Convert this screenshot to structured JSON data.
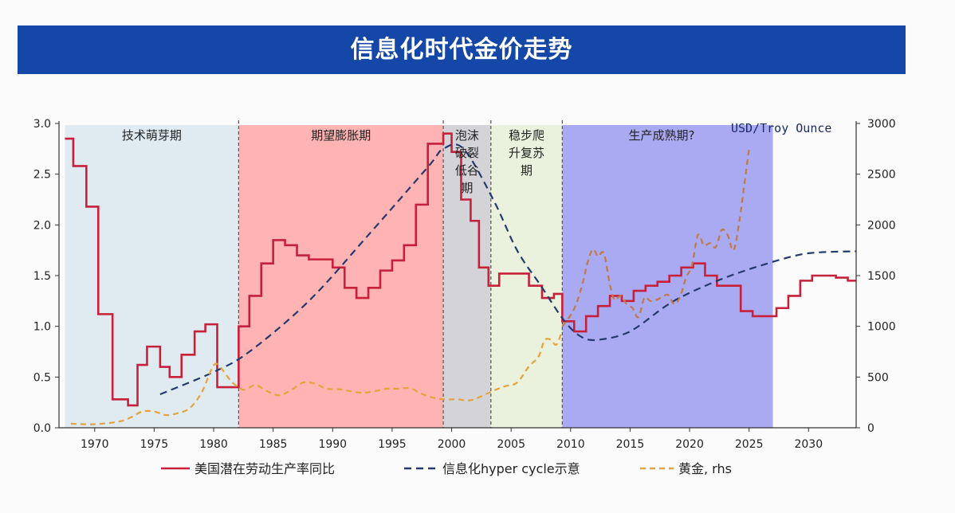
{
  "header": {
    "title": "信息化时代金价走势"
  },
  "chart_data": {
    "type": "line",
    "unit_label": "USD/Troy Ounce",
    "x_ticks": [
      1970,
      1975,
      1980,
      1985,
      1990,
      1995,
      2000,
      2005,
      2010,
      2015,
      2020,
      2025,
      2030
    ],
    "xlim": [
      1967,
      2034
    ],
    "y_left": {
      "ticks": [
        "0.0",
        "0.5",
        "1.0",
        "1.5",
        "2.0",
        "2.5",
        "3.0"
      ],
      "lim": [
        0,
        3
      ]
    },
    "y_right": {
      "ticks": [
        "0",
        "500",
        "1000",
        "1500",
        "2000",
        "2500",
        "3000"
      ],
      "lim": [
        0,
        3000
      ]
    },
    "grid": false,
    "legend_position": "bottom",
    "regions": [
      {
        "label": "技术萌芽期",
        "x0": 1967.5,
        "x1": 1982.1,
        "color": "#dfeaf1"
      },
      {
        "label": "期望膨胀期",
        "x0": 1982.1,
        "x1": 1999.3,
        "color": "#ffb3b3"
      },
      {
        "label": "泡沫破裂低谷期",
        "x0": 1999.3,
        "x1": 2003.3,
        "color": "#d3d3d8"
      },
      {
        "label": "稳步爬升复苏期",
        "x0": 2003.3,
        "x1": 2009.3,
        "color": "#eaf1dc"
      },
      {
        "label": "生产成熟期?",
        "x0": 2009.3,
        "x1": 2027.0,
        "color": "#aaaaf2"
      }
    ],
    "dividers": [
      1982.1,
      1999.3,
      2003.3,
      2009.3
    ],
    "series": [
      {
        "name": "美国潜在劳动生产率同比",
        "axis": "left",
        "style": "step",
        "color": "#c8203a",
        "x": [
          1967.5,
          1968.2,
          1969.3,
          1970.3,
          1971.5,
          1972.8,
          1973.6,
          1974.4,
          1975.5,
          1976.3,
          1977.3,
          1978.4,
          1979.3,
          1980.3,
          1982.1,
          1983.0,
          1984.0,
          1985.0,
          1986.0,
          1987.0,
          1988.0,
          1989.0,
          1990.0,
          1991.0,
          1992.0,
          1993.0,
          1994.0,
          1995.0,
          1996.0,
          1997.0,
          1998.0,
          1999.3,
          2000.0,
          2000.8,
          2001.6,
          2002.3,
          2003.1,
          2004.0,
          2005.0,
          2006.5,
          2007.6,
          2008.6,
          2009.3,
          2010.3,
          2011.3,
          2012.3,
          2013.3,
          2014.3,
          2015.3,
          2016.3,
          2017.3,
          2018.3,
          2019.3,
          2020.3,
          2021.3,
          2022.3,
          2023.3,
          2024.3,
          2025.3,
          2026.3,
          2027.3,
          2028.3,
          2029.3,
          2030.3,
          2031.3,
          2032.3,
          2033.3
        ],
        "values": [
          2.85,
          2.58,
          2.18,
          1.12,
          0.28,
          0.22,
          0.62,
          0.8,
          0.6,
          0.5,
          0.72,
          0.95,
          1.02,
          0.4,
          1.0,
          1.3,
          1.62,
          1.85,
          1.8,
          1.7,
          1.66,
          1.66,
          1.58,
          1.38,
          1.28,
          1.38,
          1.55,
          1.65,
          1.8,
          2.2,
          2.8,
          2.9,
          2.72,
          2.25,
          2.04,
          1.58,
          1.4,
          1.52,
          1.52,
          1.4,
          1.28,
          1.32,
          1.05,
          0.95,
          1.1,
          1.2,
          1.3,
          1.25,
          1.35,
          1.4,
          1.44,
          1.5,
          1.58,
          1.62,
          1.5,
          1.4,
          1.4,
          1.15,
          1.1,
          1.1,
          1.18,
          1.3,
          1.45,
          1.5,
          1.5,
          1.48,
          1.45
        ]
      },
      {
        "name": "信息化hyper cycle示意",
        "axis": "left",
        "style": "dashed",
        "color": "#243a6e",
        "x": [
          1975.5,
          1980,
          1983,
          1988,
          1993,
          1998,
          1999.3,
          2001,
          2003.5,
          2005.5,
          2007.5,
          2009.5,
          2011,
          2012.5,
          2015,
          2018,
          2020,
          2023,
          2026,
          2029,
          2031,
          2034
        ],
        "values": [
          0.33,
          0.55,
          0.75,
          1.25,
          1.9,
          2.57,
          2.75,
          2.75,
          2.25,
          1.75,
          1.4,
          1.05,
          0.89,
          0.87,
          0.95,
          1.2,
          1.33,
          1.48,
          1.6,
          1.7,
          1.73,
          1.74
        ]
      },
      {
        "name": "黄金, rhs",
        "axis": "right",
        "style": "dashed",
        "color": "#e8a23a",
        "x": [
          1968,
          1970,
          1972,
          1973,
          1974,
          1975,
          1976,
          1977,
          1978,
          1979,
          1980,
          1980.6,
          1981.5,
          1982.5,
          1983.5,
          1984.5,
          1985.5,
          1986.5,
          1987.5,
          1988.5,
          1989.5,
          1990.5,
          1991.5,
          1992.5,
          1993.5,
          1994.5,
          1995.5,
          1996.5,
          1997.5,
          1998.5,
          1999.5,
          2000.5,
          2001.5,
          2002.5,
          2003.5,
          2004.5,
          2005.5,
          2006.5,
          2007.3,
          2007.8,
          2008.3,
          2008.8,
          2009.3
        ],
        "values": [
          40,
          35,
          60,
          100,
          160,
          160,
          125,
          145,
          195,
          350,
          615,
          590,
          455,
          375,
          420,
          360,
          320,
          370,
          445,
          435,
          385,
          380,
          360,
          345,
          360,
          385,
          385,
          390,
          335,
          295,
          280,
          280,
          270,
          310,
          365,
          410,
          445,
          605,
          700,
          860,
          870,
          820,
          960
        ]
      },
      {
        "name": "黄金, rhs",
        "axis": "right",
        "style": "dashed",
        "color": "#c07a45",
        "x": [
          2009.3,
          2010.0,
          2010.5,
          2011.0,
          2011.5,
          2011.9,
          2012.3,
          2012.8,
          2013.3,
          2013.7,
          2014.2,
          2014.7,
          2015.2,
          2015.7,
          2016.2,
          2016.7,
          2017.2,
          2017.7,
          2018.2,
          2018.7,
          2019.2,
          2019.7,
          2020.2,
          2020.7,
          2021.2,
          2021.7,
          2022.2,
          2022.7,
          2023.2,
          2023.7,
          2024.2,
          2024.6,
          2025.0
        ],
        "values": [
          1000,
          1110,
          1230,
          1420,
          1660,
          1760,
          1690,
          1720,
          1410,
          1260,
          1300,
          1220,
          1180,
          1090,
          1280,
          1250,
          1260,
          1290,
          1310,
          1220,
          1290,
          1480,
          1600,
          1900,
          1800,
          1820,
          1780,
          1950,
          1900,
          1750,
          2050,
          2400,
          2750
        ]
      }
    ]
  }
}
